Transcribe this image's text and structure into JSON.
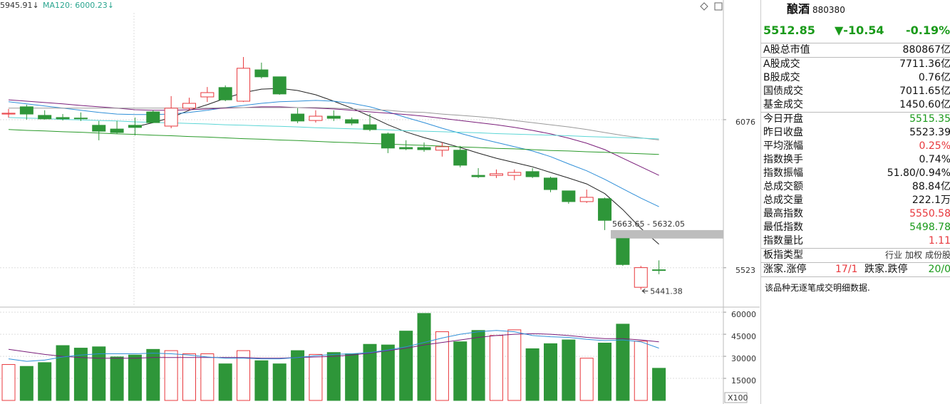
{
  "chart_data": [
    {
      "type": "candlestick",
      "ma_labels": [
        "5945.91↓",
        "MA120: 6000.23↓"
      ],
      "open": [
        6097,
        6124,
        6092,
        6084,
        6082,
        6055,
        6041,
        6055,
        6105,
        6052,
        6119,
        6161,
        6196,
        6145,
        6262,
        6236,
        6097,
        6073,
        6089,
        6076,
        6057,
        6023,
        5972,
        5972,
        5962,
        5962,
        5868,
        5868,
        5868,
        5882,
        5858,
        5810,
        5770,
        5781,
        5632,
        5450,
        5515.35
      ],
      "high": [
        6116,
        6132,
        6111,
        6097,
        6103,
        6071,
        6071,
        6084,
        6111,
        6164,
        6158,
        6198,
        6204,
        6310,
        6289,
        6236,
        6119,
        6111,
        6111,
        6084,
        6097,
        6028,
        5999,
        5991,
        5991,
        5978,
        5895,
        5890,
        5890,
        5895,
        5863,
        5810,
        5815,
        5785,
        5632.05,
        5530,
        5550.58
      ],
      "low": [
        6084,
        6076,
        6076,
        6073,
        6071,
        5999,
        6023,
        6017,
        6063,
        6044,
        6111,
        6142,
        6145,
        6142,
        6230,
        6169,
        6063,
        6065,
        6071,
        6055,
        6033,
        5951,
        5962,
        5956,
        5938,
        5898,
        5858,
        5858,
        5850,
        5858,
        5805,
        5762,
        5765,
        5663.65,
        5530,
        5441.38,
        5498.78
      ],
      "close": [
        6100,
        6097,
        6079,
        6079,
        6081,
        6033,
        6028,
        6047,
        6065,
        6119,
        6137,
        6177,
        6150,
        6268,
        6236,
        6172,
        6071,
        6089,
        6081,
        6063,
        6039,
        5970,
        5967,
        5964,
        5975,
        5906,
        5863,
        5874,
        5879,
        5863,
        5815,
        5770,
        5786,
        5700,
        5535,
        5523.39,
        5512.85
      ],
      "up_color": "#e8383d",
      "down_color": "#2e9639",
      "ylim": [
        5384,
        6475
      ],
      "yticks": [
        6076,
        5523
      ],
      "grid": true,
      "gap": [
        5663.65,
        5632.05
      ],
      "gap_label": "5663.65 - 5632.05",
      "lines": [
        {
          "color": "#222222",
          "values": [
            null,
            null,
            null,
            null,
            null,
            null,
            null,
            6049,
            6065,
            6084,
            6111,
            6132,
            6156,
            6177,
            6190,
            6193,
            6185,
            6169,
            6145,
            6119,
            6089,
            6057,
            6030,
            6009,
            5991,
            5972,
            5951,
            5932,
            5916,
            5900,
            5879,
            5858,
            5836,
            5800,
            5740,
            5670,
            5611
          ]
        },
        {
          "color": "#2f8fd8",
          "values": [
            6143,
            6135,
            6127,
            6119,
            6111,
            6103,
            6097,
            6095,
            6095,
            6097,
            6103,
            6111,
            6121,
            6129,
            6137,
            6143,
            6145,
            6148,
            6145,
            6137,
            6124,
            6105,
            6084,
            6065,
            6044,
            6025,
            6007,
            5991,
            5975,
            5959,
            5938,
            5911,
            5885,
            5853,
            5818,
            5783,
            5751
          ]
        },
        {
          "color": "#7a1e7a",
          "values": [
            6150,
            6145,
            6140,
            6135,
            6129,
            6124,
            6119,
            6113,
            6111,
            6111,
            6113,
            6116,
            6119,
            6121,
            6124,
            6124,
            6121,
            6119,
            6116,
            6111,
            6105,
            6100,
            6095,
            6089,
            6081,
            6073,
            6065,
            6057,
            6047,
            6036,
            6023,
            6007,
            5988,
            5964,
            5932,
            5900,
            5868
          ]
        },
        {
          "color": "#999999",
          "values": [
            6119,
            6119,
            6119,
            6119,
            6119,
            6119,
            6119,
            6119,
            6119,
            6119,
            6119,
            6119,
            6121,
            6121,
            6121,
            6121,
            6121,
            6121,
            6119,
            6116,
            6113,
            6111,
            6105,
            6103,
            6097,
            6092,
            6087,
            6081,
            6073,
            6065,
            6057,
            6049,
            6039,
            6028,
            6017,
            6008,
            6000.23
          ]
        },
        {
          "color": "#5cd6d6",
          "values": [
            6084,
            6082,
            6080,
            6077,
            6075,
            6073,
            6071,
            6068,
            6066,
            6064,
            6062,
            6060,
            6057,
            6055,
            6053,
            6051,
            6049,
            6046,
            6044,
            6042,
            6040,
            6038,
            6035,
            6033,
            6031,
            6029,
            6027,
            6024,
            6022,
            6020,
            6018,
            6016,
            6013,
            6011,
            6009,
            6007,
            6004
          ]
        },
        {
          "color": "#2a9a2a",
          "values": [
            6039,
            6036,
            6034,
            6031,
            6029,
            6026,
            6023,
            6021,
            6018,
            6016,
            6013,
            6011,
            6008,
            6005,
            6003,
            6000,
            5998,
            5995,
            5992,
            5990,
            5987,
            5985,
            5982,
            5980,
            5977,
            5974,
            5972,
            5969,
            5967,
            5964,
            5961,
            5959,
            5956,
            5954,
            5951,
            5949,
            5945.91
          ]
        }
      ]
    },
    {
      "type": "bar",
      "values": [
        24430,
        23140,
        25720,
        37290,
        35570,
        36430,
        29570,
        30860,
        34710,
        33860,
        31710,
        31710,
        24860,
        33860,
        27000,
        24860,
        33860,
        31290,
        32570,
        31710,
        38140,
        37710,
        47140,
        59140,
        46710,
        39860,
        47570,
        44140,
        48000,
        35140,
        38570,
        41140,
        28710,
        39000,
        51860,
        40290,
        21860
      ],
      "ylim": [
        0,
        62000
      ],
      "yticks": [
        15000,
        30000,
        45000,
        60000
      ],
      "grid": true,
      "unit_label": "X100",
      "lines": [
        {
          "color": "#7a1e7a",
          "values": [
            34710,
            33000,
            31290,
            30000,
            29140,
            28710,
            28710,
            28710,
            29140,
            29140,
            29140,
            29140,
            29140,
            29140,
            28710,
            28710,
            29140,
            29570,
            30000,
            30860,
            32140,
            33860,
            35570,
            37710,
            39430,
            41140,
            42860,
            44140,
            45000,
            45430,
            45000,
            44140,
            42860,
            42000,
            42000,
            41140,
            39860
          ]
        },
        {
          "color": "#2f8fd8",
          "values": [
            28290,
            26570,
            27430,
            29570,
            30860,
            31710,
            31710,
            31710,
            32140,
            31710,
            30860,
            29570,
            28710,
            28710,
            28290,
            28290,
            29140,
            30430,
            31290,
            31710,
            32570,
            34290,
            36430,
            39430,
            42430,
            45000,
            46710,
            47570,
            46710,
            44140,
            43290,
            42860,
            41570,
            40710,
            41140,
            39860,
            35570
          ]
        }
      ]
    }
  ],
  "quote": {
    "name": "酿酒",
    "code": "880380",
    "price": "5512.85",
    "change": "▼-10.54",
    "pct": "-0.19%",
    "color": "#1a9a1a"
  },
  "stats": [
    [
      {
        "label": "A股总市值",
        "value": "880867亿"
      }
    ],
    [
      {
        "label": "A股成交",
        "value": "7711.36亿"
      },
      {
        "label": "B股成交",
        "value": "0.76亿"
      },
      {
        "label": "国债成交",
        "value": "7011.65亿"
      },
      {
        "label": "基金成交",
        "value": "1450.60亿"
      }
    ],
    [
      {
        "label": "今日开盘",
        "value": "5515.35",
        "color": "#1a9a1a"
      },
      {
        "label": "昨日收盘",
        "value": "5523.39"
      },
      {
        "label": "平均涨幅",
        "value": "0.25%",
        "color": "#e8383d"
      },
      {
        "label": "指数换手",
        "value": "0.74%"
      },
      {
        "label": "指数振幅",
        "value": "51.80/0.94%"
      },
      {
        "label": "总成交额",
        "value": "88.84亿"
      },
      {
        "label": "总成交量",
        "value": "222.1万"
      },
      {
        "label": "最高指数",
        "value": "5550.58",
        "color": "#e8383d"
      },
      {
        "label": "最低指数",
        "value": "5498.78",
        "color": "#1a9a1a"
      },
      {
        "label": "指数量比",
        "value": "1.11",
        "color": "#e8383d"
      }
    ]
  ],
  "type_row": {
    "label": "板指类型",
    "options": [
      "行业",
      "加权",
      "成份股"
    ]
  },
  "breadth": {
    "up_label": "涨家.涨停",
    "up_value": "17/1",
    "down_label": "跌家.跌停",
    "down_value": "20/0"
  },
  "note": "该品种无逐笔成交明细数据."
}
